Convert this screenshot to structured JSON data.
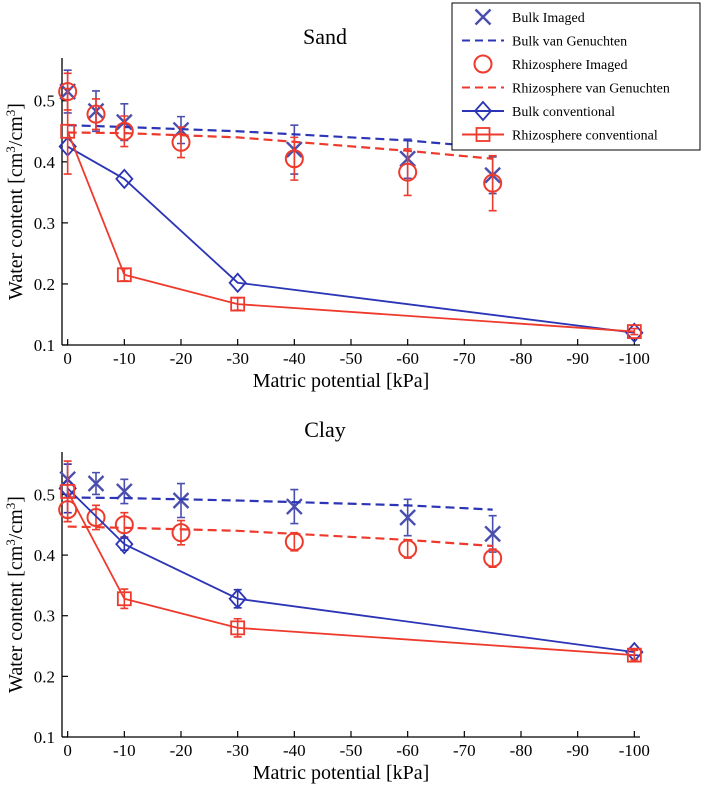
{
  "chart_data": [
    {
      "type": "line",
      "title": "Sand",
      "xlabel": "Matric potential [kPa]",
      "ylabel": "Water content [cm3/cm3]",
      "ylabel_base": "Water content [cm",
      "ylabel_sup": "3",
      "ylabel_mid": "/cm",
      "ylabel_end": "]",
      "xlim": [
        1,
        -101
      ],
      "ylim": [
        0.1,
        0.57
      ],
      "xticks": [
        0,
        -10,
        -20,
        -30,
        -40,
        -50,
        -60,
        -70,
        -80,
        -90,
        -100
      ],
      "xtick_labels": [
        "0",
        "-10",
        "-20",
        "-30",
        "-40",
        "-50",
        "-60",
        "-70",
        "-80",
        "-90",
        "-100"
      ],
      "yticks": [
        0.1,
        0.2,
        0.3,
        0.4,
        0.5
      ],
      "ytick_labels": [
        "0.1",
        "0.2",
        "0.3",
        "0.4",
        "0.5"
      ],
      "series": [
        {
          "name": "Bulk Imaged",
          "kind": "imaged",
          "color": "#4a4fae",
          "marker": "x",
          "x": [
            0,
            -5,
            -10,
            -20,
            -40,
            -60,
            -75
          ],
          "y": [
            0.515,
            0.483,
            0.465,
            0.452,
            0.42,
            0.405,
            0.378
          ],
          "err": [
            0.035,
            0.033,
            0.03,
            0.022,
            0.04,
            0.032,
            0.03
          ]
        },
        {
          "name": "Bulk van Genuchten",
          "kind": "vg",
          "color": "#2b35b5",
          "marker": "none",
          "x": [
            0,
            -10,
            -30,
            -60,
            -75
          ],
          "y": [
            0.46,
            0.457,
            0.45,
            0.435,
            0.423
          ]
        },
        {
          "name": "Rhizosphere Imaged",
          "kind": "imaged",
          "color": "#ee3a2c",
          "marker": "o",
          "x": [
            0,
            -5,
            -10,
            -20,
            -40,
            -60,
            -75
          ],
          "y": [
            0.515,
            0.478,
            0.45,
            0.432,
            0.405,
            0.383,
            0.365
          ],
          "err": [
            0.03,
            0.025,
            0.025,
            0.025,
            0.035,
            0.038,
            0.045
          ]
        },
        {
          "name": "Rhizosphere van Genuchten",
          "kind": "vg",
          "color": "#ee3a2c",
          "marker": "none",
          "x": [
            0,
            -10,
            -30,
            -60,
            -75
          ],
          "y": [
            0.448,
            0.447,
            0.44,
            0.418,
            0.405
          ]
        },
        {
          "name": "Bulk conventional",
          "kind": "conv",
          "color": "#2b35b5",
          "marker": "diamond",
          "x": [
            0,
            -10,
            -30,
            -100
          ],
          "y": [
            0.425,
            0.372,
            0.202,
            0.12
          ]
        },
        {
          "name": "Rhizosphere conventional",
          "kind": "conv",
          "color": "#ee3a2c",
          "marker": "square",
          "x": [
            0,
            -10,
            -30,
            -100
          ],
          "y": [
            0.45,
            0.215,
            0.167,
            0.122
          ],
          "err": [
            0.07,
            0.01,
            0.01,
            0.005
          ]
        }
      ],
      "legend": "top-right"
    },
    {
      "type": "line",
      "title": "Clay",
      "xlabel": "Matric potential [kPa]",
      "ylabel": "Water content [cm3/cm3]",
      "ylabel_base": "Water content [cm",
      "ylabel_sup": "3",
      "ylabel_mid": "/cm",
      "ylabel_end": "]",
      "xlim": [
        1,
        -101
      ],
      "ylim": [
        0.1,
        0.57
      ],
      "xticks": [
        0,
        -10,
        -20,
        -30,
        -40,
        -50,
        -60,
        -70,
        -80,
        -90,
        -100
      ],
      "xtick_labels": [
        "0",
        "-10",
        "-20",
        "-30",
        "-40",
        "-50",
        "-60",
        "-70",
        "-80",
        "-90",
        "-100"
      ],
      "yticks": [
        0.1,
        0.2,
        0.3,
        0.4,
        0.5
      ],
      "ytick_labels": [
        "0.1",
        "0.2",
        "0.3",
        "0.4",
        "0.5"
      ],
      "series": [
        {
          "name": "Bulk Imaged",
          "kind": "imaged",
          "color": "#4a4fae",
          "marker": "x",
          "x": [
            0,
            -5,
            -10,
            -20,
            -40,
            -60,
            -75
          ],
          "y": [
            0.525,
            0.518,
            0.505,
            0.49,
            0.48,
            0.462,
            0.435
          ],
          "err": [
            0.025,
            0.018,
            0.02,
            0.028,
            0.028,
            0.03,
            0.03
          ]
        },
        {
          "name": "Bulk van Genuchten",
          "kind": "vg",
          "color": "#2b35b5",
          "marker": "none",
          "x": [
            0,
            -10,
            -30,
            -60,
            -75
          ],
          "y": [
            0.495,
            0.494,
            0.49,
            0.482,
            0.475
          ]
        },
        {
          "name": "Rhizosphere Imaged",
          "kind": "imaged",
          "color": "#ee3a2c",
          "marker": "o",
          "x": [
            0,
            -5,
            -10,
            -20,
            -40,
            -60,
            -75
          ],
          "y": [
            0.475,
            0.462,
            0.45,
            0.437,
            0.422,
            0.41,
            0.395
          ],
          "err": [
            0.02,
            0.02,
            0.02,
            0.02,
            0.015,
            0.015,
            0.015
          ]
        },
        {
          "name": "Rhizosphere van Genuchten",
          "kind": "vg",
          "color": "#ee3a2c",
          "marker": "none",
          "x": [
            0,
            -10,
            -30,
            -60,
            -75
          ],
          "y": [
            0.447,
            0.445,
            0.44,
            0.425,
            0.415
          ]
        },
        {
          "name": "Bulk conventional",
          "kind": "conv",
          "color": "#2b35b5",
          "marker": "diamond",
          "x": [
            0,
            -10,
            -30,
            -100
          ],
          "y": [
            0.51,
            0.418,
            0.328,
            0.24
          ],
          "err": [
            0.04,
            0.01,
            0.015,
            0.005
          ]
        },
        {
          "name": "Rhizosphere conventional",
          "kind": "conv",
          "color": "#ee3a2c",
          "marker": "square",
          "x": [
            0,
            -10,
            -30,
            -100
          ],
          "y": [
            0.505,
            0.328,
            0.28,
            0.235
          ],
          "err": [
            0.05,
            0.016,
            0.015,
            0.008
          ]
        }
      ]
    }
  ],
  "legend": {
    "items": [
      {
        "label": "Bulk Imaged",
        "marker": "x",
        "line": "none",
        "color": "#4a4fae"
      },
      {
        "label": "Bulk van Genuchten",
        "marker": "none",
        "line": "dashed",
        "color": "#2b35b5"
      },
      {
        "label": "Rhizosphere Imaged",
        "marker": "o",
        "line": "none",
        "color": "#ee3a2c"
      },
      {
        "label": "Rhizosphere van Genuchten",
        "marker": "none",
        "line": "dashed",
        "color": "#ee3a2c"
      },
      {
        "label": "Bulk conventional",
        "marker": "diamond",
        "line": "solid",
        "color": "#2b35b5"
      },
      {
        "label": "Rhizosphere conventional",
        "marker": "square",
        "line": "solid",
        "color": "#ee3a2c"
      }
    ]
  }
}
